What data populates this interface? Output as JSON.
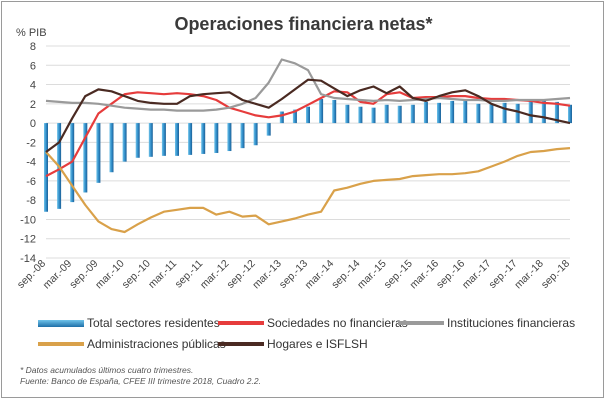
{
  "chart_data": {
    "type": "bar",
    "title": "Operaciones financiera netas*",
    "ylabel": "% PIB",
    "ylim": [
      -14,
      8
    ],
    "yticks": [
      8,
      6,
      4,
      2,
      0,
      -2,
      -4,
      -6,
      -8,
      -10,
      -12,
      -14
    ],
    "x_tick_labels": [
      "sep.-08",
      "mar.-09",
      "sep.-09",
      "mar.-10",
      "sep.-10",
      "mar.-11",
      "sep.-11",
      "mar.-12",
      "sep.-12",
      "mar.-13",
      "sep.-13",
      "mar.-14",
      "sep.-14",
      "mar.-15",
      "sep.-15",
      "mar.-16",
      "sep.-16",
      "mar.-17",
      "sep.-17",
      "mar.-18",
      "sep.-18"
    ],
    "x": [
      "sep.-08",
      "dic.-08",
      "mar.-09",
      "jun.-09",
      "sep.-09",
      "dic.-09",
      "mar.-10",
      "jun.-10",
      "sep.-10",
      "dic.-10",
      "mar.-11",
      "jun.-11",
      "sep.-11",
      "dic.-11",
      "mar.-12",
      "jun.-12",
      "sep.-12",
      "dic.-12",
      "mar.-13",
      "jun.-13",
      "sep.-13",
      "dic.-13",
      "mar.-14",
      "jun.-14",
      "sep.-14",
      "dic.-14",
      "mar.-15",
      "jun.-15",
      "sep.-15",
      "dic.-15",
      "mar.-16",
      "jun.-16",
      "sep.-16",
      "dic.-16",
      "mar.-17",
      "jun.-17",
      "sep.-17",
      "dic.-17",
      "mar.-18",
      "jun.-18",
      "sep.-18"
    ],
    "series": [
      {
        "name": "Total sectores residentes",
        "kind": "bar",
        "color": "#1f77b4",
        "values": [
          -9.2,
          -8.9,
          -8.2,
          -7.2,
          -6.2,
          -5.1,
          -4.0,
          -3.6,
          -3.5,
          -3.4,
          -3.4,
          -3.3,
          -3.2,
          -3.1,
          -2.9,
          -2.6,
          -2.3,
          -1.3,
          1.2,
          1.4,
          1.7,
          2.5,
          2.4,
          1.9,
          1.7,
          1.6,
          1.9,
          1.8,
          1.9,
          2.2,
          2.1,
          2.3,
          2.3,
          2.0,
          2.0,
          2.1,
          2.0,
          2.4,
          2.4,
          2.2,
          1.9
        ]
      },
      {
        "name": "Sociedades no financieras",
        "kind": "line",
        "color": "#e63c3c",
        "values": [
          -5.5,
          -4.8,
          -4.0,
          -1.5,
          1.0,
          2.0,
          3.0,
          3.2,
          3.1,
          3.0,
          3.1,
          3.0,
          2.8,
          2.4,
          1.6,
          1.2,
          0.8,
          0.6,
          0.8,
          1.2,
          1.9,
          2.6,
          3.3,
          3.2,
          2.2,
          2.0,
          3.0,
          3.2,
          2.6,
          2.7,
          2.7,
          2.8,
          2.8,
          2.6,
          2.5,
          2.5,
          2.4,
          2.3,
          2.1,
          2.0,
          1.8
        ]
      },
      {
        "name": "Instituciones financieras",
        "kind": "line",
        "color": "#9a9a9a",
        "values": [
          2.3,
          2.2,
          2.1,
          2.1,
          2.0,
          1.8,
          1.6,
          1.5,
          1.4,
          1.4,
          1.3,
          1.3,
          1.3,
          1.4,
          1.6,
          2.0,
          2.6,
          4.2,
          6.6,
          6.2,
          5.5,
          3.0,
          2.6,
          2.5,
          2.4,
          2.3,
          2.4,
          2.3,
          2.4,
          2.5,
          2.6,
          2.5,
          2.4,
          2.4,
          2.3,
          2.3,
          2.4,
          2.4,
          2.4,
          2.5,
          2.6
        ]
      },
      {
        "name": "Administraciones públicas",
        "kind": "line",
        "color": "#d9a14a",
        "values": [
          -3.0,
          -4.5,
          -6.5,
          -8.5,
          -10.2,
          -11.0,
          -11.3,
          -10.5,
          -9.8,
          -9.2,
          -9.0,
          -8.8,
          -8.8,
          -9.5,
          -9.2,
          -9.7,
          -9.6,
          -10.5,
          -10.2,
          -9.9,
          -9.5,
          -9.2,
          -7.0,
          -6.7,
          -6.3,
          -6.0,
          -5.9,
          -5.8,
          -5.5,
          -5.4,
          -5.3,
          -5.3,
          -5.2,
          -5.0,
          -4.5,
          -4.0,
          -3.4,
          -3.0,
          -2.9,
          -2.7,
          -2.6
        ]
      },
      {
        "name": "Hogares e ISFLSH",
        "kind": "line",
        "color": "#4a2a22",
        "values": [
          -3.0,
          -2.0,
          0.5,
          2.8,
          3.5,
          3.3,
          2.8,
          2.3,
          2.1,
          2.0,
          2.0,
          2.8,
          3.0,
          3.1,
          3.2,
          2.4,
          2.0,
          1.6,
          2.5,
          3.5,
          4.5,
          4.4,
          3.6,
          2.8,
          3.4,
          3.8,
          3.1,
          3.8,
          2.6,
          2.3,
          2.8,
          3.2,
          3.4,
          2.8,
          2.0,
          1.5,
          1.2,
          0.8,
          0.6,
          0.3,
          0.0
        ]
      }
    ],
    "grid": true,
    "legend_position": "bottom"
  },
  "notes": {
    "line1": "* Datos acumulados últimos cuatro trimestres.",
    "line2": "Fuente: Banco de España, CFEE III trimestre 2018, Cuadro 2.2."
  }
}
